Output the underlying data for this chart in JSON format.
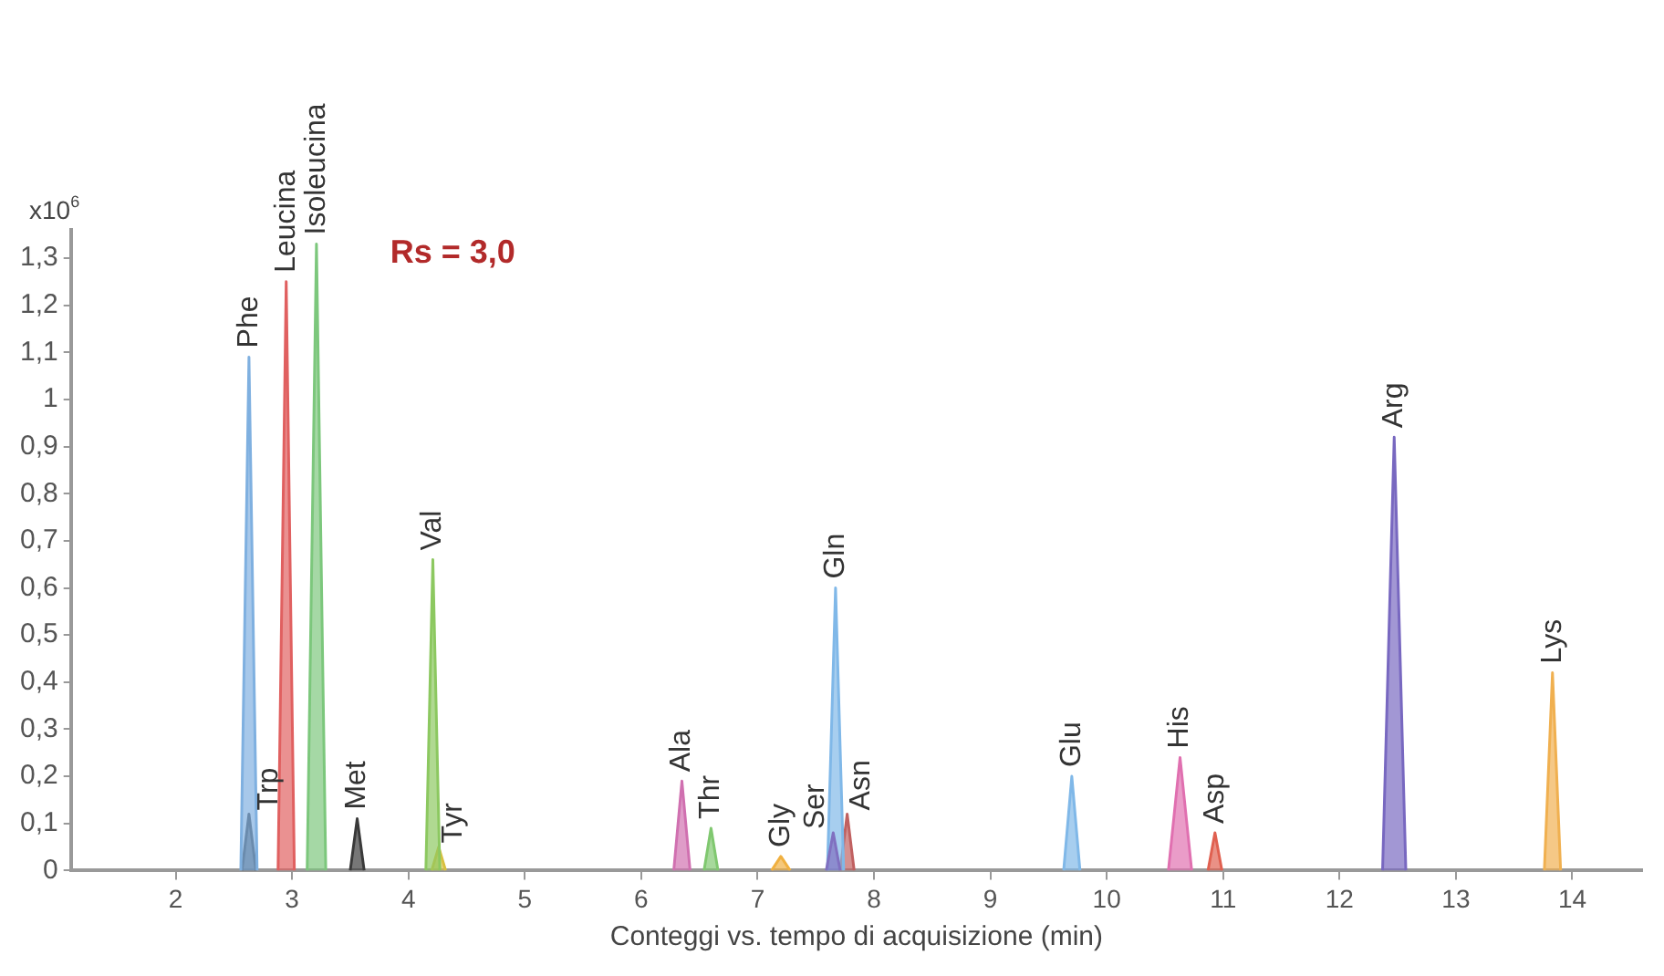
{
  "chart_data": {
    "type": "area",
    "xlabel": "Conteggi vs. tempo di acquisizione (min)",
    "ylabel": "x10$^{6}$",
    "annotations": [
      "Rs = 3,0"
    ],
    "xlim": [
      1.1,
      14.6
    ],
    "xticks": [
      2,
      3,
      4,
      5,
      6,
      7,
      8,
      9,
      10,
      11,
      12,
      13,
      14
    ],
    "ylim": [
      0,
      1.36
    ],
    "yticks": [
      0,
      {
        "value": 0.1,
        "label": "0,1"
      },
      {
        "value": 0.2,
        "label": "0,2"
      },
      {
        "value": 0.3,
        "label": "0,3"
      },
      {
        "value": 0.4,
        "label": "0,4"
      },
      {
        "value": 0.5,
        "label": "0,5"
      },
      {
        "value": 0.6,
        "label": "0,6"
      },
      {
        "value": 0.7,
        "label": "0,7"
      },
      {
        "value": 0.8,
        "label": "0,8"
      },
      {
        "value": 0.9,
        "label": "0,9"
      },
      {
        "value": 1,
        "label": "1"
      },
      {
        "value": 1.1,
        "label": "1,1"
      },
      {
        "value": 1.2,
        "label": "1,2"
      },
      {
        "value": 1.3,
        "label": "1,3"
      }
    ],
    "grid": false,
    "legend": false,
    "marker": "none",
    "series": [
      {
        "name": "Phe",
        "color": "#7fb0e0",
        "x": [
          2.56,
          2.63,
          2.7
        ],
        "values": [
          0,
          1.09,
          0
        ]
      },
      {
        "name": "Trp",
        "color": "#3a3a3a",
        "x": [
          2.57,
          2.63,
          2.69
        ],
        "values": [
          0,
          0.12,
          0
        ]
      },
      {
        "name": "Leucina",
        "color": "#e06060",
        "x": [
          2.88,
          2.95,
          3.02
        ],
        "values": [
          0,
          1.25,
          0
        ]
      },
      {
        "name": "Isoleucina",
        "color": "#7cc77c",
        "x": [
          3.13,
          3.21,
          3.29
        ],
        "values": [
          0,
          1.33,
          0
        ]
      },
      {
        "name": "Met",
        "color": "#3a3a3a",
        "x": [
          3.5,
          3.56,
          3.62
        ],
        "values": [
          0,
          0.11,
          0
        ]
      },
      {
        "name": "Val",
        "color": "#8cc860",
        "x": [
          4.15,
          4.21,
          4.27
        ],
        "values": [
          0,
          0.66,
          0
        ]
      },
      {
        "name": "Tyr",
        "color": "#d8c040",
        "x": [
          4.2,
          4.26,
          4.32
        ],
        "values": [
          0,
          0.05,
          0
        ]
      },
      {
        "name": "Ala",
        "color": "#d070b0",
        "x": [
          6.28,
          6.35,
          6.42
        ],
        "values": [
          0,
          0.19,
          0
        ]
      },
      {
        "name": "Thr",
        "color": "#80c870",
        "x": [
          6.54,
          6.6,
          6.66
        ],
        "values": [
          0,
          0.09,
          0
        ]
      },
      {
        "name": "Gly",
        "color": "#f0b040",
        "x": [
          7.12,
          7.2,
          7.28
        ],
        "values": [
          0,
          0.03,
          0
        ]
      },
      {
        "name": "Ser",
        "color": "#8070c0",
        "x": [
          7.59,
          7.65,
          7.71
        ],
        "values": [
          0,
          0.08,
          0
        ]
      },
      {
        "name": "Gln",
        "color": "#80b8e8",
        "x": [
          7.6,
          7.67,
          7.74
        ],
        "values": [
          0,
          0.6,
          0
        ]
      },
      {
        "name": "Asn",
        "color": "#c06060",
        "x": [
          7.71,
          7.77,
          7.83
        ],
        "values": [
          0,
          0.12,
          0
        ]
      },
      {
        "name": "Glu",
        "color": "#80b8e8",
        "x": [
          9.63,
          9.7,
          9.77
        ],
        "values": [
          0,
          0.2,
          0
        ]
      },
      {
        "name": "His",
        "color": "#e070b0",
        "x": [
          10.53,
          10.63,
          10.73
        ],
        "values": [
          0,
          0.24,
          0
        ]
      },
      {
        "name": "Asp",
        "color": "#e06050",
        "x": [
          10.87,
          10.93,
          10.99
        ],
        "values": [
          0,
          0.08,
          0
        ]
      },
      {
        "name": "Arg",
        "color": "#7868c0",
        "x": [
          12.37,
          12.47,
          12.57
        ],
        "values": [
          0,
          0.92,
          0
        ]
      },
      {
        "name": "Lys",
        "color": "#f0b050",
        "x": [
          13.76,
          13.83,
          13.9
        ],
        "values": [
          0,
          0.42,
          0
        ]
      }
    ]
  }
}
